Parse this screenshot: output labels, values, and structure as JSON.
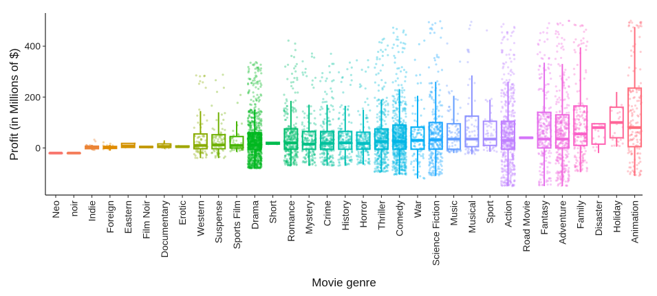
{
  "chart_data": {
    "type": "box",
    "xlabel": "Movie genre",
    "ylabel": "Profit (in Millions of $)",
    "ylim": [
      -185,
      530
    ],
    "yticks": [
      0,
      200,
      400
    ],
    "grid": false,
    "legend": "none",
    "categories": [
      "Neo",
      "noir",
      "Indie",
      "Foreign",
      "Eastern",
      "Film Noir",
      "Documentary",
      "Erotic",
      "Western",
      "Suspense",
      "Sports Film",
      "Drama",
      "Short",
      "Romance",
      "Mystery",
      "Crime",
      "History",
      "Horror",
      "Thriller",
      "Comedy",
      "War",
      "Science Fiction",
      "Music",
      "Musical",
      "Sport",
      "Action",
      "Road Movie",
      "Fantasy",
      "Adventure",
      "Family",
      "Disaster",
      "Holiday",
      "Animation"
    ],
    "colors": [
      "#f8766d",
      "#f47d5a",
      "#eb8335",
      "#e08b00",
      "#d39200",
      "#c49a00",
      "#b3a000",
      "#a0a600",
      "#89ac00",
      "#6fb000",
      "#45b500",
      "#00b81f",
      "#00bb4e",
      "#00be6c",
      "#00c085",
      "#00c19c",
      "#00c1b1",
      "#00bfc4",
      "#00bbd6",
      "#00b6e6",
      "#00b0f6",
      "#1aa7ff",
      "#619cff",
      "#8b93ff",
      "#a58aff",
      "#bf80ff",
      "#d474f9",
      "#e46bec",
      "#f066dc",
      "#fa62c9",
      "#ff61b2",
      "#ff6597",
      "#ff6c7c"
    ],
    "boxes": [
      {
        "q1": -20,
        "median": -20,
        "q3": -20,
        "whisker_low": -20,
        "whisker_high": -20
      },
      {
        "q1": -20,
        "median": -20,
        "q3": -20,
        "whisker_low": -20,
        "whisker_high": -20
      },
      {
        "q1": -3,
        "median": 2,
        "q3": 7,
        "whisker_low": -8,
        "whisker_high": 12
      },
      {
        "q1": -2,
        "median": 2,
        "q3": 6,
        "whisker_low": -10,
        "whisker_high": 12
      },
      {
        "q1": 2,
        "median": 8,
        "q3": 18,
        "whisker_low": 2,
        "whisker_high": 18
      },
      {
        "q1": 2,
        "median": 4,
        "q3": 6,
        "whisker_low": 2,
        "whisker_high": 6
      },
      {
        "q1": 2,
        "median": 6,
        "q3": 16,
        "whisker_low": -3,
        "whisker_high": 30
      },
      {
        "q1": 3,
        "median": 5,
        "q3": 8,
        "whisker_low": 3,
        "whisker_high": 8
      },
      {
        "q1": -3,
        "median": 10,
        "q3": 55,
        "whisker_low": -40,
        "whisker_high": 145
      },
      {
        "q1": -3,
        "median": 12,
        "q3": 52,
        "whisker_low": -40,
        "whisker_high": 140
      },
      {
        "q1": 0,
        "median": 10,
        "q3": 45,
        "whisker_low": -15,
        "whisker_high": 105
      },
      {
        "q1": -5,
        "median": 12,
        "q3": 60,
        "whisker_low": -80,
        "whisker_high": 150
      },
      {
        "q1": 15,
        "median": 18,
        "q3": 22,
        "whisker_low": 15,
        "whisker_high": 22
      },
      {
        "q1": -5,
        "median": 20,
        "q3": 75,
        "whisker_low": -70,
        "whisker_high": 185
      },
      {
        "q1": -5,
        "median": 15,
        "q3": 65,
        "whisker_low": -70,
        "whisker_high": 170
      },
      {
        "q1": -5,
        "median": 18,
        "q3": 65,
        "whisker_low": -70,
        "whisker_high": 170
      },
      {
        "q1": -5,
        "median": 20,
        "q3": 65,
        "whisker_low": -70,
        "whisker_high": 165
      },
      {
        "q1": -5,
        "median": 18,
        "q3": 62,
        "whisker_low": -65,
        "whisker_high": 150
      },
      {
        "q1": -5,
        "median": 25,
        "q3": 75,
        "whisker_low": -95,
        "whisker_high": 190
      },
      {
        "q1": -5,
        "median": 25,
        "q3": 90,
        "whisker_low": -105,
        "whisker_high": 230
      },
      {
        "q1": -5,
        "median": 30,
        "q3": 82,
        "whisker_low": -120,
        "whisker_high": 205
      },
      {
        "q1": -5,
        "median": 32,
        "q3": 100,
        "whisker_low": -110,
        "whisker_high": 260
      },
      {
        "q1": -5,
        "median": 35,
        "q3": 95,
        "whisker_low": -20,
        "whisker_high": 205
      },
      {
        "q1": 5,
        "median": 35,
        "q3": 125,
        "whisker_low": -25,
        "whisker_high": 285
      },
      {
        "q1": 10,
        "median": 35,
        "q3": 105,
        "whisker_low": -15,
        "whisker_high": 190
      },
      {
        "q1": -5,
        "median": 30,
        "q3": 105,
        "whisker_low": -150,
        "whisker_high": 260
      },
      {
        "q1": 38,
        "median": 40,
        "q3": 42,
        "whisker_low": 38,
        "whisker_high": 42
      },
      {
        "q1": 0,
        "median": 35,
        "q3": 140,
        "whisker_low": -150,
        "whisker_high": 335
      },
      {
        "q1": 0,
        "median": 35,
        "q3": 130,
        "whisker_low": -150,
        "whisker_high": 330
      },
      {
        "q1": 10,
        "median": 55,
        "q3": 165,
        "whisker_low": -95,
        "whisker_high": 395
      },
      {
        "q1": 15,
        "median": 80,
        "q3": 95,
        "whisker_low": -20,
        "whisker_high": 95
      },
      {
        "q1": 40,
        "median": 100,
        "q3": 160,
        "whisker_low": 5,
        "whisker_high": 220
      },
      {
        "q1": 5,
        "median": 80,
        "q3": 235,
        "whisker_low": -110,
        "whisker_high": 475
      }
    ],
    "point_counts": [
      0,
      0,
      18,
      20,
      3,
      2,
      14,
      3,
      80,
      75,
      45,
      1000,
      3,
      320,
      180,
      260,
      150,
      190,
      420,
      650,
      110,
      300,
      75,
      70,
      45,
      560,
      1,
      260,
      360,
      210,
      14,
      22,
      150
    ]
  }
}
